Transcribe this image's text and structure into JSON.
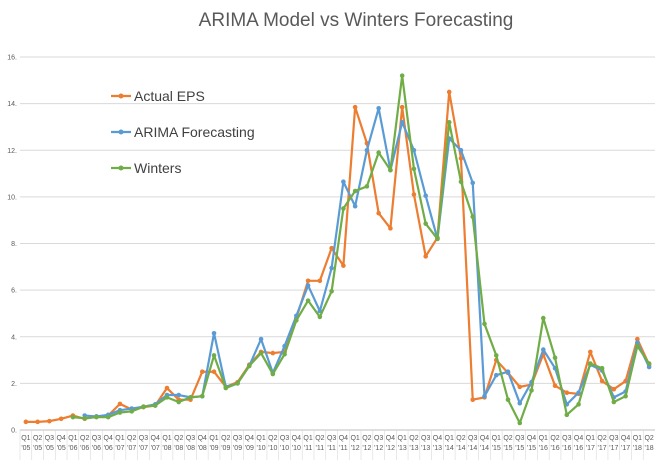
{
  "chart_data": {
    "type": "line",
    "title": "ARIMA Model vs Winters Forecasting",
    "xlabel": "",
    "ylabel": "",
    "ylim": [
      0,
      16
    ],
    "y_ticks": [
      "0.",
      "2.",
      "4.",
      "6.",
      "8.",
      "10.",
      "12.",
      "14.",
      "16."
    ],
    "grid": true,
    "legend_position": "upper-left inside plot",
    "categories": [
      "Q1 '05",
      "Q2 '05",
      "Q3 '05",
      "Q4 '05",
      "Q1 '06",
      "Q2 '06",
      "Q3 '06",
      "Q4 '06",
      "Q1 '07",
      "Q2 '07",
      "Q3 '07",
      "Q4 '07",
      "Q1 '08",
      "Q2 '08",
      "Q3 '08",
      "Q4 '08",
      "Q1 '09",
      "Q2 '09",
      "Q3 '09",
      "Q4 '09",
      "Q1 '10",
      "Q2 '10",
      "Q3 '10",
      "Q4 '10",
      "Q1 '11",
      "Q2 '11",
      "Q3 '11",
      "Q4 '11",
      "Q1 '12",
      "Q2 '12",
      "Q3 '12",
      "Q4 '12",
      "Q1 '13",
      "Q2 '13",
      "Q3 '13",
      "Q4 '13",
      "Q1 '14",
      "Q2 '14",
      "Q3 '14",
      "Q4 '14",
      "Q1 '15",
      "Q2 '15",
      "Q3 '15",
      "Q4 '15",
      "Q1 '16",
      "Q2 '16",
      "Q3 '16",
      "Q4 '16",
      "Q1 '17",
      "Q2 '17",
      "Q3 '17",
      "Q4 '17",
      "Q1 '18",
      "Q2 '18"
    ],
    "series": [
      {
        "name": "Actual EPS",
        "color": "#ed7d31",
        "values": [
          0.35,
          0.35,
          0.38,
          0.48,
          0.62,
          0.48,
          0.58,
          0.62,
          1.12,
          0.88,
          0.98,
          1.05,
          1.8,
          1.3,
          1.3,
          2.5,
          2.5,
          1.85,
          2.05,
          2.8,
          3.35,
          3.3,
          3.35,
          4.8,
          6.4,
          6.4,
          7.8,
          7.05,
          13.85,
          12.3,
          9.3,
          8.65,
          13.85,
          10.1,
          7.45,
          8.25,
          14.5,
          11.65,
          1.3,
          1.4,
          3.0,
          2.45,
          1.85,
          1.95,
          3.25,
          1.9,
          1.6,
          1.55,
          3.35,
          2.1,
          1.75,
          2.1,
          3.9,
          2.8
        ]
      },
      {
        "name": "ARIMA Forecasting",
        "color": "#5b9bd5",
        "values": [
          null,
          null,
          null,
          null,
          null,
          0.62,
          0.58,
          0.65,
          0.85,
          0.92,
          1.0,
          1.1,
          1.5,
          1.5,
          1.4,
          1.45,
          4.15,
          1.85,
          2.0,
          2.75,
          3.9,
          2.45,
          3.6,
          4.9,
          6.2,
          5.1,
          6.95,
          10.65,
          9.6,
          12.0,
          13.8,
          11.15,
          13.2,
          12.0,
          10.05,
          8.2,
          12.5,
          12.0,
          10.6,
          1.45,
          2.35,
          2.5,
          1.15,
          2.05,
          3.45,
          2.65,
          1.1,
          1.6,
          2.8,
          2.55,
          1.4,
          1.65,
          3.75,
          2.7
        ]
      },
      {
        "name": "Winters",
        "color": "#70ad47",
        "values": [
          null,
          null,
          null,
          null,
          0.55,
          0.5,
          0.55,
          0.55,
          0.75,
          0.8,
          1.0,
          1.05,
          1.4,
          1.2,
          1.4,
          1.45,
          3.2,
          1.8,
          2.0,
          2.75,
          3.3,
          2.4,
          3.25,
          4.7,
          5.55,
          4.85,
          5.95,
          9.5,
          10.25,
          10.45,
          11.9,
          11.15,
          15.2,
          11.2,
          8.85,
          8.2,
          13.2,
          10.65,
          9.15,
          4.55,
          3.2,
          1.3,
          0.3,
          1.7,
          4.8,
          3.1,
          0.65,
          1.1,
          2.85,
          2.65,
          1.2,
          1.45,
          3.6,
          2.85
        ]
      }
    ]
  }
}
